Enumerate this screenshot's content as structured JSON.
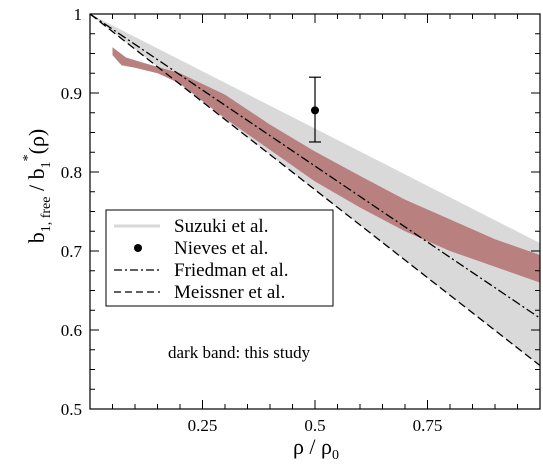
{
  "chart_data": {
    "type": "line",
    "xlabel": "ρ / ρ",
    "xlabel_sub": "0",
    "ylabel": {
      "b_main": "b",
      "sub_1": "1, free",
      "slash": " / b",
      "sub_2": "1",
      "sup": "*",
      "arg": "(ρ)"
    },
    "xlim": [
      0,
      1
    ],
    "ylim": [
      0.5,
      1.0
    ],
    "xticks": [
      {
        "value": 0.25,
        "label": "0.25"
      },
      {
        "value": 0.5,
        "label": "0.5"
      },
      {
        "value": 0.75,
        "label": "0.75"
      }
    ],
    "yticks": [
      {
        "value": 0.5,
        "label": "0.5"
      },
      {
        "value": 0.6,
        "label": "0.6"
      },
      {
        "value": 0.7,
        "label": "0.7"
      },
      {
        "value": 0.8,
        "label": "0.8"
      },
      {
        "value": 0.9,
        "label": "0.9"
      },
      {
        "value": 1.0,
        "label": "1"
      }
    ],
    "legend_position": "lower-left",
    "series": [
      {
        "name": "Suzuki et al.",
        "kind": "band",
        "color": "#d9d9d9",
        "upper": [
          [
            0,
            1.0
          ],
          [
            1.0,
            0.71
          ]
        ],
        "lower": [
          [
            0,
            1.0
          ],
          [
            1.0,
            0.555
          ]
        ]
      },
      {
        "name": "Nieves et al.",
        "kind": "point",
        "color": "#000000",
        "x": 0.5,
        "y": 0.878,
        "yerr_low": 0.838,
        "yerr_high": 0.92
      },
      {
        "name": "Friedman et al.",
        "kind": "line",
        "dash": "dashdot",
        "color": "#000000",
        "x": [
          0,
          1.0
        ],
        "y": [
          1.0,
          0.615
        ]
      },
      {
        "name": "Meissner et al.",
        "kind": "line",
        "dash": "dashed",
        "color": "#000000",
        "x": [
          0,
          1.0
        ],
        "y": [
          1.0,
          0.555
        ]
      }
    ],
    "this_study_band": {
      "color": "#b98080",
      "upper": [
        [
          0.05,
          0.958
        ],
        [
          0.08,
          0.945
        ],
        [
          0.12,
          0.938
        ],
        [
          0.2,
          0.925
        ],
        [
          0.3,
          0.898
        ],
        [
          0.4,
          0.86
        ],
        [
          0.5,
          0.826
        ],
        [
          0.6,
          0.795
        ],
        [
          0.7,
          0.765
        ],
        [
          0.8,
          0.74
        ],
        [
          0.9,
          0.715
        ],
        [
          1.0,
          0.695
        ]
      ],
      "lower": [
        [
          0.05,
          0.948
        ],
        [
          0.07,
          0.935
        ],
        [
          0.1,
          0.932
        ],
        [
          0.15,
          0.925
        ],
        [
          0.2,
          0.912
        ],
        [
          0.3,
          0.868
        ],
        [
          0.4,
          0.828
        ],
        [
          0.5,
          0.788
        ],
        [
          0.6,
          0.755
        ],
        [
          0.7,
          0.725
        ],
        [
          0.8,
          0.7
        ],
        [
          0.9,
          0.68
        ],
        [
          1.0,
          0.66
        ]
      ]
    },
    "annotations": [
      {
        "text": "dark band: this study",
        "x": 0.35,
        "y": 0.582
      }
    ]
  }
}
